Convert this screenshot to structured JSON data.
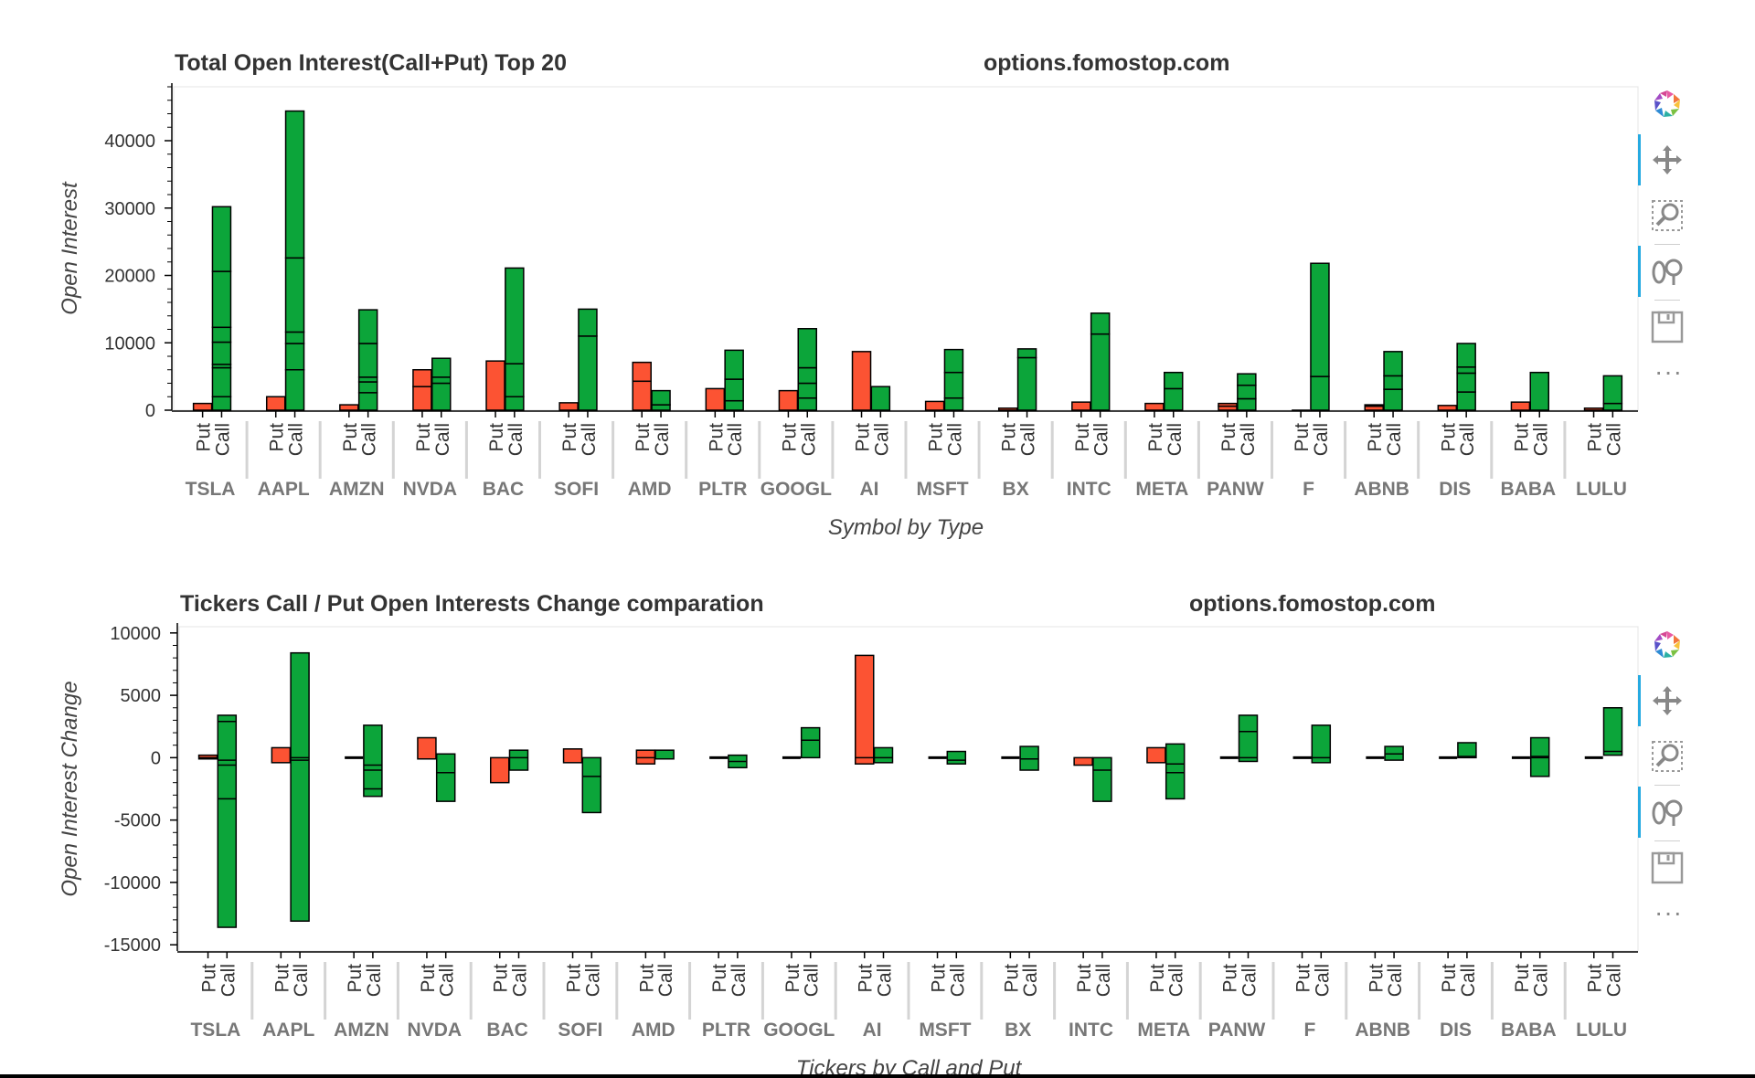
{
  "chart_data": [
    {
      "type": "bar",
      "title": "Total Open Interest(Call+Put) Top 20",
      "watermark": "options.fomostop.com",
      "xlabel": "Symbol by Type",
      "ylabel": "Open Interest",
      "ylim": [
        0,
        48000
      ],
      "yticks": [
        0,
        10000,
        20000,
        30000,
        40000
      ],
      "ytick_labels": [
        "0",
        "10000",
        "20000",
        "30000",
        "40000"
      ],
      "categories": [
        "TSLA",
        "AAPL",
        "AMZN",
        "NVDA",
        "BAC",
        "SOFI",
        "AMD",
        "PLTR",
        "GOOGL",
        "AI",
        "MSFT",
        "BX",
        "INTC",
        "META",
        "PANW",
        "F",
        "ABNB",
        "DIS",
        "BABA",
        "LULU"
      ],
      "types": [
        "Put",
        "Call"
      ],
      "stacked": true,
      "series": [
        {
          "name": "Put",
          "color": "#fc5333",
          "stacks": [
            [
              1000
            ],
            [
              2000
            ],
            [
              800
            ],
            [
              3500,
              2500
            ],
            [
              7300
            ],
            [
              1100
            ],
            [
              4300,
              2800
            ],
            [
              3200
            ],
            [
              2900
            ],
            [
              8700
            ],
            [
              1300
            ],
            [
              300
            ],
            [
              1200
            ],
            [
              1000
            ],
            [
              600,
              400
            ],
            [
              0
            ],
            [
              600,
              200
            ],
            [
              700
            ],
            [
              1200
            ],
            [
              300
            ]
          ]
        },
        {
          "name": "Call",
          "color": "#0ca53a",
          "stacks": [
            [
              2000,
              4300,
              500,
              3300,
              2200,
              8300,
              9600
            ],
            [
              6000,
              3900,
              1700,
              11000,
              21800
            ],
            [
              2600,
              1600,
              700,
              5000,
              5000
            ],
            [
              4000,
              900,
              2800
            ],
            [
              2000,
              4900,
              14200
            ],
            [
              11000,
              4000
            ],
            [
              800,
              2100
            ],
            [
              1400,
              3200,
              4300
            ],
            [
              1800,
              2200,
              2300,
              5800
            ],
            [
              3500
            ],
            [
              1800,
              3800,
              3400
            ],
            [
              7800,
              1300
            ],
            [
              11300,
              3100
            ],
            [
              3200,
              2400
            ],
            [
              1700,
              2000,
              1700
            ],
            [
              5000,
              16800
            ],
            [
              3100,
              2000,
              3600
            ],
            [
              2700,
              2800,
              900,
              3500
            ],
            [
              5600
            ],
            [
              1000,
              4100
            ]
          ]
        }
      ]
    },
    {
      "type": "bar",
      "title": "Tickers Call / Put Open Interests Change comparation",
      "watermark": "options.fomostop.com",
      "xlabel": "Tickers by Call and Put",
      "ylabel": "Open Interest Change",
      "ylim": [
        -15500,
        10500
      ],
      "yticks": [
        -15000,
        -10000,
        -5000,
        0,
        5000,
        10000
      ],
      "ytick_labels": [
        "-15000",
        "-10000",
        "-5000",
        "0",
        "5000",
        "10000"
      ],
      "categories": [
        "TSLA",
        "AAPL",
        "AMZN",
        "NVDA",
        "BAC",
        "SOFI",
        "AMD",
        "PLTR",
        "GOOGL",
        "AI",
        "MSFT",
        "BX",
        "INTC",
        "META",
        "PANW",
        "F",
        "ABNB",
        "DIS",
        "BABA",
        "LULU"
      ],
      "types": [
        "Put",
        "Call"
      ],
      "ranges": {
        "Put": [
          [
            -100,
            200
          ],
          [
            -400,
            800
          ],
          [
            -100,
            100
          ],
          [
            -100,
            1600
          ],
          [
            -2000,
            0
          ],
          [
            -400,
            700
          ],
          [
            -500,
            600
          ],
          [
            -100,
            100
          ],
          [
            -100,
            100
          ],
          [
            -500,
            8200
          ],
          [
            -100,
            100
          ],
          [
            -100,
            100
          ],
          [
            -600,
            0
          ],
          [
            -400,
            800
          ],
          [
            -100,
            100
          ],
          [
            0,
            0
          ],
          [
            -100,
            100
          ],
          [
            -100,
            100
          ],
          [
            -100,
            100
          ],
          [
            -100,
            100
          ]
        ],
        "Call": [
          [
            -13600,
            3400
          ],
          [
            -13100,
            8400
          ],
          [
            -3100,
            2600
          ],
          [
            -3500,
            300
          ],
          [
            -1000,
            600
          ],
          [
            -4400,
            0
          ],
          [
            -100,
            600
          ],
          [
            -800,
            200
          ],
          [
            0,
            2400
          ],
          [
            -400,
            800
          ],
          [
            -500,
            500
          ],
          [
            -1000,
            900
          ],
          [
            -3500,
            0
          ],
          [
            -3300,
            1100
          ],
          [
            -300,
            3400
          ],
          [
            -400,
            2600
          ],
          [
            -200,
            900
          ],
          [
            0,
            1200
          ],
          [
            -1500,
            1600
          ],
          [
            200,
            4000
          ]
        ]
      },
      "inner_lines": {
        "Put": [
          [
            0
          ],
          [],
          [],
          [],
          [],
          [],
          [
            0
          ],
          [],
          [],
          [
            0
          ],
          [],
          [],
          [],
          [],
          [],
          [],
          [],
          [],
          [],
          []
        ],
        "Call": [
          [
            2900,
            -200,
            -600,
            -3300
          ],
          [
            -200,
            0
          ],
          [
            -600,
            -1000,
            -2500
          ],
          [
            -1200
          ],
          [
            0
          ],
          [
            -1500
          ],
          [],
          [
            -300
          ],
          [
            1400
          ],
          [
            0
          ],
          [
            -200
          ],
          [
            -100
          ],
          [
            -1000
          ],
          [
            -500,
            -1200
          ],
          [
            2100,
            0
          ],
          [
            0
          ],
          [
            300
          ],
          [
            100
          ],
          [
            0,
            100
          ],
          [
            500
          ]
        ]
      },
      "colors": {
        "Put": "#fc5333",
        "Call": "#0ca53a"
      }
    }
  ]
}
